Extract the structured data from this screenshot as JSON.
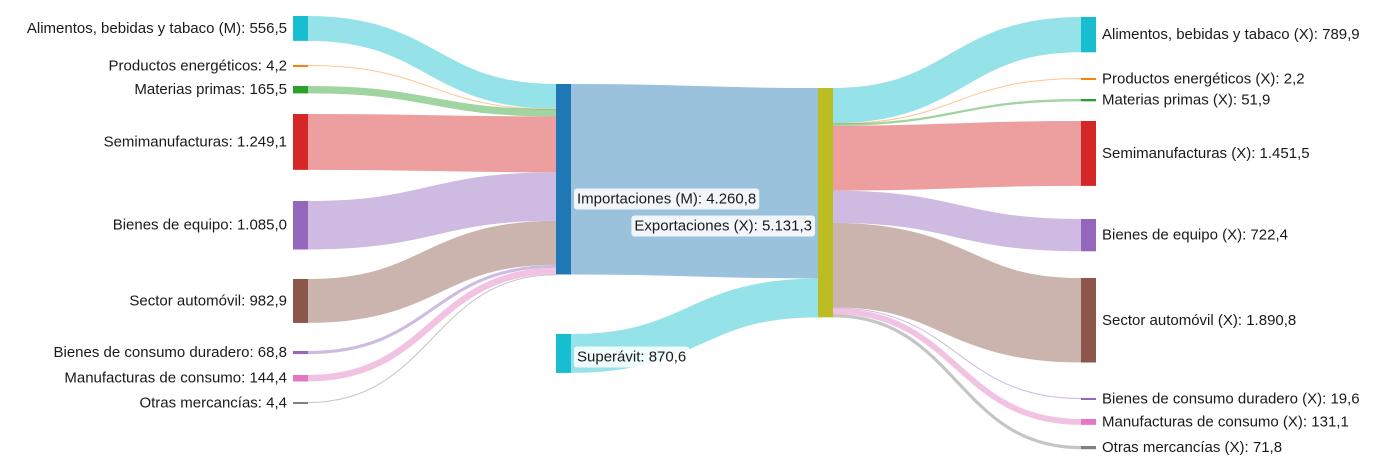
{
  "chart_data": {
    "type": "sankey",
    "colors": {
      "alimentos": "#17becf",
      "energeticos": "#ff7f0e",
      "materias": "#2ca02c",
      "semimanufacturas": "#d62728",
      "equipo": "#9467bd",
      "automovil": "#8c564b",
      "duradero": "#9467bd",
      "manufacturas": "#e377c2",
      "otras": "#7f7f7f",
      "importaciones": "#1f77b4",
      "exportaciones": "#bcbd22",
      "superavit": "#17becf"
    },
    "nodes": [
      {
        "id": "M_alim",
        "label": "Alimentos, bebidas y tabaco (M): 556,5",
        "value": 556.5,
        "color": "alimentos"
      },
      {
        "id": "M_ener",
        "label": "Productos energéticos: 4,2",
        "value": 4.2,
        "color": "energeticos"
      },
      {
        "id": "M_mat",
        "label": "Materias primas: 165,5",
        "value": 165.5,
        "color": "materias"
      },
      {
        "id": "M_semi",
        "label": "Semimanufacturas: 1.249,1",
        "value": 1249.1,
        "color": "semimanufacturas"
      },
      {
        "id": "M_equi",
        "label": "Bienes de equipo: 1.085,0",
        "value": 1085.0,
        "color": "equipo"
      },
      {
        "id": "M_auto",
        "label": "Sector automóvil: 982,9",
        "value": 982.9,
        "color": "automovil"
      },
      {
        "id": "M_dur",
        "label": "Bienes de consumo duradero: 68,8",
        "value": 68.8,
        "color": "duradero"
      },
      {
        "id": "M_manu",
        "label": "Manufacturas de consumo: 144,4",
        "value": 144.4,
        "color": "manufacturas"
      },
      {
        "id": "M_otras",
        "label": "Otras mercancías: 4,4",
        "value": 4.4,
        "color": "otras"
      },
      {
        "id": "IMP",
        "label": "Importaciones (M): 4.260,8",
        "value": 4260.8,
        "color": "importaciones"
      },
      {
        "id": "SUP",
        "label": "Superávit: 870,6",
        "value": 870.6,
        "color": "superavit"
      },
      {
        "id": "EXP",
        "label": "Exportaciones (X): 5.131,3",
        "value": 5131.3,
        "color": "exportaciones"
      },
      {
        "id": "X_alim",
        "label": "Alimentos, bebidas y tabaco (X): 789,9",
        "value": 789.9,
        "color": "alimentos"
      },
      {
        "id": "X_ener",
        "label": "Productos energéticos (X): 2,2",
        "value": 2.2,
        "color": "energeticos"
      },
      {
        "id": "X_mat",
        "label": "Materias primas (X): 51,9",
        "value": 51.9,
        "color": "materias"
      },
      {
        "id": "X_semi",
        "label": "Semimanufacturas (X): 1.451,5",
        "value": 1451.5,
        "color": "semimanufacturas"
      },
      {
        "id": "X_equi",
        "label": "Bienes de equipo (X): 722,4",
        "value": 722.4,
        "color": "equipo"
      },
      {
        "id": "X_auto",
        "label": "Sector automóvil (X): 1.890,8",
        "value": 1890.8,
        "color": "automovil"
      },
      {
        "id": "X_dur",
        "label": "Bienes de consumo duradero (X): 19,6",
        "value": 19.6,
        "color": "duradero"
      },
      {
        "id": "X_manu",
        "label": "Manufacturas de consumo (X): 131,1",
        "value": 131.1,
        "color": "manufacturas"
      },
      {
        "id": "X_otras",
        "label": "Otras mercancías (X): 71,8",
        "value": 71.8,
        "color": "otras"
      }
    ],
    "links": [
      {
        "source": "M_alim",
        "target": "IMP",
        "value": 556.5,
        "color": "alimentos"
      },
      {
        "source": "M_ener",
        "target": "IMP",
        "value": 4.2,
        "color": "energeticos"
      },
      {
        "source": "M_mat",
        "target": "IMP",
        "value": 165.5,
        "color": "materias"
      },
      {
        "source": "M_semi",
        "target": "IMP",
        "value": 1249.1,
        "color": "semimanufacturas"
      },
      {
        "source": "M_equi",
        "target": "IMP",
        "value": 1085.0,
        "color": "equipo"
      },
      {
        "source": "M_auto",
        "target": "IMP",
        "value": 982.9,
        "color": "automovil"
      },
      {
        "source": "M_dur",
        "target": "IMP",
        "value": 68.8,
        "color": "duradero"
      },
      {
        "source": "M_manu",
        "target": "IMP",
        "value": 144.4,
        "color": "manufacturas"
      },
      {
        "source": "M_otras",
        "target": "IMP",
        "value": 4.4,
        "color": "otras"
      },
      {
        "source": "IMP",
        "target": "EXP",
        "value": 4260.8,
        "color": "importaciones"
      },
      {
        "source": "SUP",
        "target": "EXP",
        "value": 870.6,
        "color": "superavit"
      },
      {
        "source": "EXP",
        "target": "X_alim",
        "value": 789.9,
        "color": "alimentos"
      },
      {
        "source": "EXP",
        "target": "X_ener",
        "value": 2.2,
        "color": "energeticos"
      },
      {
        "source": "EXP",
        "target": "X_mat",
        "value": 51.9,
        "color": "materias"
      },
      {
        "source": "EXP",
        "target": "X_semi",
        "value": 1451.5,
        "color": "semimanufacturas"
      },
      {
        "source": "EXP",
        "target": "X_equi",
        "value": 722.4,
        "color": "equipo"
      },
      {
        "source": "EXP",
        "target": "X_auto",
        "value": 1890.8,
        "color": "automovil"
      },
      {
        "source": "EXP",
        "target": "X_dur",
        "value": 19.6,
        "color": "duradero"
      },
      {
        "source": "EXP",
        "target": "X_manu",
        "value": 131.1,
        "color": "manufacturas"
      },
      {
        "source": "EXP",
        "target": "X_otras",
        "value": 71.8,
        "color": "otras"
      }
    ]
  }
}
